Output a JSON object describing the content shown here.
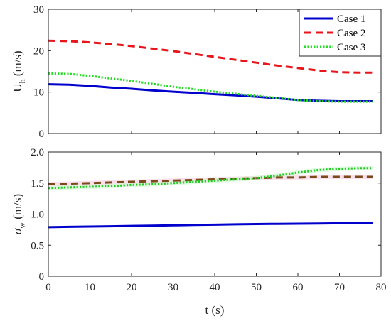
{
  "chart_data": [
    {
      "type": "line",
      "panel": "top",
      "xlabel": "",
      "ylabel_main": "U",
      "ylabel_sub": "h",
      "ylabel_unit": " (m/s)",
      "xlim": [
        0,
        80
      ],
      "ylim": [
        0,
        30
      ],
      "xticks": [
        0,
        10,
        20,
        30,
        40,
        50,
        60,
        70,
        80
      ],
      "yticks": [
        0,
        10,
        20,
        30
      ],
      "ytick_labels": [
        "0",
        "10",
        "20",
        "30"
      ],
      "show_xtick_labels": false,
      "grid": false,
      "legend_placement": "top-right",
      "x": [
        0,
        5,
        10,
        15,
        20,
        25,
        30,
        35,
        40,
        45,
        50,
        55,
        60,
        65,
        70,
        75,
        78
      ],
      "series": [
        {
          "name": "Case 1",
          "color": "#0000cc",
          "style": "solid",
          "values": [
            11.9,
            11.8,
            11.5,
            11.1,
            10.8,
            10.4,
            10.1,
            9.8,
            9.5,
            9.2,
            8.9,
            8.5,
            8.1,
            7.9,
            7.8,
            7.8,
            7.8
          ]
        },
        {
          "name": "Case 2",
          "color": "#e8151b",
          "style": "dashed",
          "values": [
            22.4,
            22.3,
            22.0,
            21.6,
            21.1,
            20.5,
            19.9,
            19.2,
            18.5,
            17.8,
            17.1,
            16.4,
            15.8,
            15.2,
            14.8,
            14.7,
            14.7
          ]
        },
        {
          "name": "Case 3",
          "color": "#22dd22",
          "style": "dotted",
          "values": [
            14.5,
            14.4,
            13.9,
            13.3,
            12.7,
            12.0,
            11.3,
            10.7,
            10.1,
            9.6,
            9.1,
            8.6,
            8.1,
            7.8,
            7.7,
            7.7,
            7.7
          ]
        }
      ]
    },
    {
      "type": "line",
      "panel": "bottom",
      "xlabel": "t (s)",
      "ylabel_main": "σ",
      "ylabel_sub": "w",
      "ylabel_unit": " (m/s)",
      "xlim": [
        0,
        80
      ],
      "ylim": [
        0,
        2
      ],
      "xticks": [
        0,
        10,
        20,
        30,
        40,
        50,
        60,
        70,
        80
      ],
      "xtick_labels": [
        "0",
        "10",
        "20",
        "30",
        "40",
        "50",
        "60",
        "70",
        "80"
      ],
      "yticks": [
        0,
        0.5,
        1,
        1.5,
        2
      ],
      "ytick_labels": [
        "0",
        "0.5",
        "1.0",
        "1.5",
        "2.0"
      ],
      "grid": false,
      "x": [
        0,
        5,
        10,
        15,
        20,
        25,
        30,
        35,
        40,
        45,
        50,
        55,
        60,
        65,
        70,
        75,
        78
      ],
      "series": [
        {
          "color": "#0000cc",
          "style": "solid",
          "band_color": "",
          "values": [
            0.79,
            0.795,
            0.8,
            0.805,
            0.81,
            0.815,
            0.82,
            0.825,
            0.83,
            0.835,
            0.84,
            0.843,
            0.846,
            0.849,
            0.852,
            0.854,
            0.855
          ]
        },
        {
          "color": "#7a4a1a",
          "style": "dashed",
          "band_color": "#f5c6dc",
          "values": [
            1.48,
            1.49,
            1.5,
            1.51,
            1.52,
            1.53,
            1.54,
            1.55,
            1.56,
            1.57,
            1.58,
            1.59,
            1.59,
            1.6,
            1.6,
            1.6,
            1.6
          ]
        },
        {
          "color": "#22cc22",
          "style": "dotted",
          "band_color": "#c8f5c8",
          "values": [
            1.42,
            1.43,
            1.44,
            1.45,
            1.47,
            1.48,
            1.5,
            1.52,
            1.54,
            1.56,
            1.58,
            1.62,
            1.67,
            1.71,
            1.73,
            1.74,
            1.74
          ]
        }
      ]
    }
  ]
}
